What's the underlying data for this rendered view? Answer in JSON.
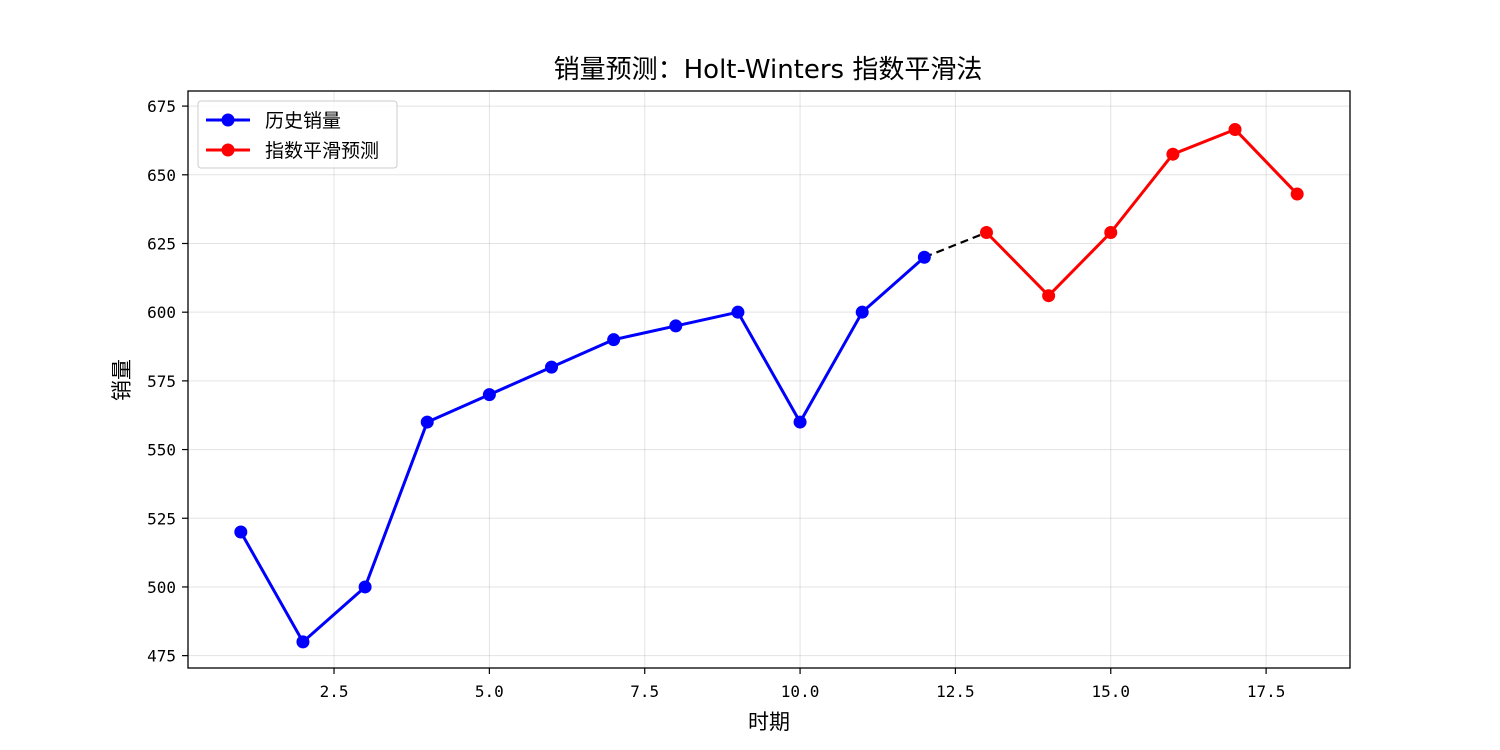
{
  "chart_data": {
    "type": "line",
    "title": "销量预测：Holt-Winters 指数平滑法",
    "xlabel": "时期",
    "ylabel": "销量",
    "xlim": [
      0.15,
      18.85
    ],
    "ylim": [
      470.5,
      680.5
    ],
    "xticks": [
      2.5,
      5.0,
      7.5,
      10.0,
      12.5,
      15.0,
      17.5
    ],
    "xtick_labels": [
      "2.5",
      "5.0",
      "7.5",
      "10.0",
      "12.5",
      "15.0",
      "17.5"
    ],
    "yticks": [
      475,
      500,
      525,
      550,
      575,
      600,
      625,
      650,
      675
    ],
    "ytick_labels": [
      "475",
      "500",
      "525",
      "550",
      "575",
      "600",
      "625",
      "650",
      "675"
    ],
    "grid": true,
    "legend_position": "top-left",
    "series": [
      {
        "name": "历史销量",
        "color": "#0000ff",
        "style": "solid",
        "marker": "circle",
        "x": [
          1,
          2,
          3,
          4,
          5,
          6,
          7,
          8,
          9,
          10,
          11,
          12
        ],
        "y": [
          520,
          480,
          500,
          560,
          570,
          580,
          590,
          595,
          600,
          560,
          600,
          620
        ]
      },
      {
        "name": "指数平滑预测",
        "color": "#ff0000",
        "style": "solid",
        "marker": "circle",
        "x": [
          13,
          14,
          15,
          16,
          17,
          18
        ],
        "y": [
          629,
          606,
          629,
          657.5,
          666.5,
          643
        ]
      },
      {
        "color": "#000000",
        "style": "dashed",
        "marker": "none",
        "x": [
          12,
          13
        ],
        "y": [
          620,
          629
        ]
      }
    ]
  }
}
